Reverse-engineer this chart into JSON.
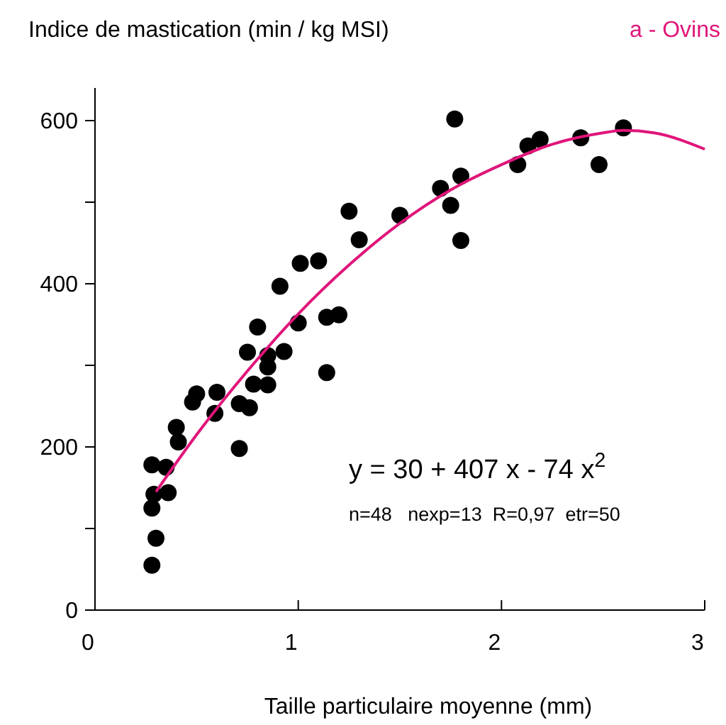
{
  "chart_data": {
    "type": "scatter",
    "title": "a - Ovins",
    "xlabel": "Taille particulaire moyenne (mm)",
    "ylabel": "Indice de mastication (min / kg MSI)",
    "xlim": [
      0,
      3
    ],
    "xticks": [
      0,
      1,
      2,
      3
    ],
    "ylim": [
      0,
      640
    ],
    "yticks": [
      0,
      {
        "value": 100,
        "label": null
      },
      200,
      {
        "value": 300,
        "label": null
      },
      400,
      {
        "value": 500,
        "label": null
      },
      600
    ],
    "grid": false,
    "marker": "circle",
    "series": [
      {
        "color": "#000000",
        "x": [
          0.28,
          0.29,
          0.28,
          0.3,
          0.28,
          0.35,
          0.36,
          0.4,
          0.41,
          0.48,
          0.5,
          0.6,
          0.59,
          0.71,
          0.71,
          0.76,
          0.75,
          0.78,
          0.8,
          0.85,
          0.85,
          0.85,
          0.91,
          0.93,
          1.01,
          1.0,
          1.1,
          1.14,
          1.14,
          1.2,
          1.25,
          1.3,
          1.5,
          1.77,
          1.8,
          1.7,
          1.75,
          1.8,
          2.08,
          2.13,
          2.19,
          2.39,
          2.48,
          2.6
        ],
        "values": [
          178,
          142,
          125,
          88,
          55,
          175,
          144,
          224,
          206,
          255,
          265,
          267,
          241,
          198,
          253,
          248,
          316,
          277,
          347,
          312,
          298,
          276,
          397,
          317,
          425,
          352,
          428,
          291,
          359,
          362,
          489,
          454,
          484,
          602,
          532,
          517,
          496,
          453,
          546,
          569,
          577,
          579,
          546,
          591
        ]
      },
      {
        "type": "line",
        "color": "#e0157a",
        "marker": "none",
        "x": [
          0.3,
          0.5,
          0.75,
          1,
          1.25,
          1.5,
          1.75,
          2,
          2.25,
          2.5,
          2.6,
          2.75,
          3.0
        ],
        "values": [
          145,
          215,
          293,
          363,
          423,
          474,
          515,
          546,
          571,
          585,
          588,
          585,
          565
        ]
      }
    ],
    "annotations": [
      "y = 30 + 407 x - 74 x$^{2}$",
      "n=48   nexp=13  R=0,97  etr=50"
    ]
  }
}
